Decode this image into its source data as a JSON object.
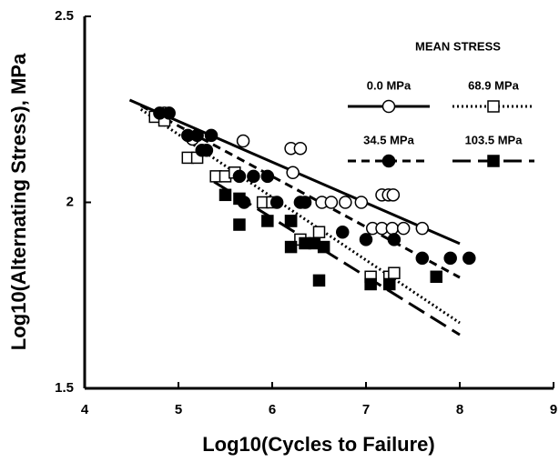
{
  "chart_data": {
    "type": "scatter",
    "x_label": "Log10(Cycles to Failure)",
    "y_label": "Log10(Alternating Stress), MPa",
    "legend_title": "MEAN STRESS",
    "xlim": [
      4,
      9
    ],
    "ylim": [
      1.5,
      2.5
    ],
    "xticks": [
      4,
      5,
      6,
      7,
      8,
      9
    ],
    "yticks": [
      1.5,
      2,
      2.5
    ],
    "series": [
      {
        "name": "0.0 MPa",
        "color": "#000000",
        "marker": "circle",
        "filled": false,
        "dash": "solid",
        "x": [
          4.85,
          5.15,
          5.69,
          6.2,
          6.3,
          6.22,
          6.53,
          6.63,
          6.78,
          6.95,
          7.17,
          7.24,
          7.29,
          7.07,
          7.17,
          7.28,
          7.4,
          7.6
        ],
        "y": [
          2.24,
          2.17,
          2.165,
          2.145,
          2.145,
          2.08,
          2.0,
          2.0,
          2.0,
          2.0,
          2.02,
          2.02,
          2.02,
          1.93,
          1.93,
          1.93,
          1.93,
          1.93
        ],
        "fit_x": [
          4.48,
          8.0
        ],
        "fit_y": [
          2.275,
          1.889
        ]
      },
      {
        "name": "68.9 MPa",
        "color": "#000000",
        "marker": "square",
        "filled": false,
        "dash": "dotted",
        "x": [
          4.75,
          4.85,
          5.1,
          5.2,
          5.4,
          5.5,
          5.6,
          5.9,
          6.0,
          6.2,
          6.3,
          6.5,
          7.05,
          7.25,
          7.3
        ],
        "y": [
          2.23,
          2.22,
          2.12,
          2.12,
          2.07,
          2.07,
          2.08,
          2.0,
          2.0,
          1.95,
          1.9,
          1.92,
          1.8,
          1.8,
          1.81
        ],
        "fit_x": [
          4.6,
          8.0
        ],
        "fit_y": [
          2.25,
          1.676
        ]
      },
      {
        "name": "34.5 MPa",
        "color": "#000000",
        "marker": "circle",
        "filled": true,
        "dash": "dashed",
        "x": [
          4.8,
          4.9,
          5.1,
          5.2,
          5.35,
          5.25,
          5.3,
          5.65,
          5.8,
          5.95,
          5.7,
          6.05,
          6.3,
          6.35,
          6.75,
          7.0,
          7.3,
          7.6,
          7.9,
          8.1
        ],
        "y": [
          2.24,
          2.24,
          2.18,
          2.18,
          2.18,
          2.14,
          2.14,
          2.07,
          2.07,
          2.07,
          2.0,
          2.0,
          2.0,
          2.0,
          1.92,
          1.9,
          1.9,
          1.85,
          1.85,
          1.85
        ],
        "fit_x": [
          4.6,
          8.0
        ],
        "fit_y": [
          2.26,
          1.798
        ]
      },
      {
        "name": "103.5 MPa",
        "color": "#000000",
        "marker": "square",
        "filled": true,
        "dash": "longdash",
        "x": [
          5.5,
          5.65,
          5.65,
          5.95,
          6.2,
          6.2,
          6.35,
          6.45,
          6.55,
          6.5,
          7.05,
          7.25,
          7.75
        ],
        "y": [
          2.02,
          2.01,
          1.94,
          1.95,
          1.95,
          1.88,
          1.89,
          1.89,
          1.88,
          1.79,
          1.78,
          1.78,
          1.8
        ],
        "fit_x": [
          5.38,
          8.0
        ],
        "fit_y": [
          2.055,
          1.644
        ]
      }
    ]
  }
}
